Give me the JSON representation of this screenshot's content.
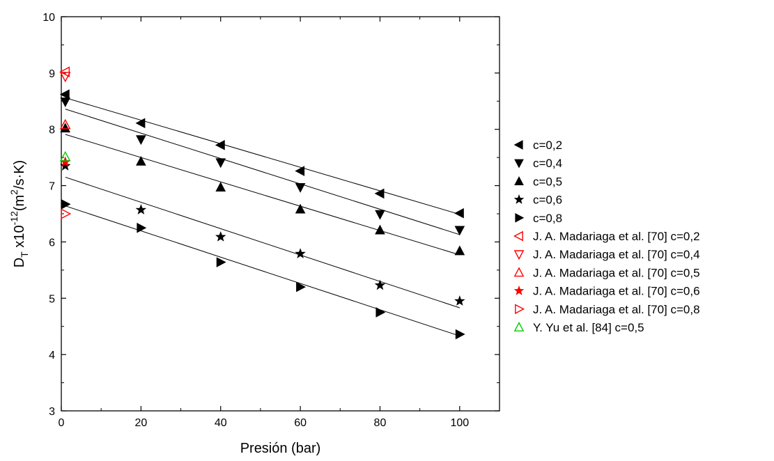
{
  "chart_data": {
    "type": "scatter",
    "xlabel": "Presión (bar)",
    "ylabel": {
      "base": "D",
      "sub": "T",
      "mid": " x10",
      "sup1": "-12",
      "pre": "(m",
      "sup2": "2",
      "post": "/s·K)"
    },
    "xlim": [
      0,
      110
    ],
    "ylim": [
      3,
      10
    ],
    "x_ticks": [
      0,
      20,
      40,
      60,
      80,
      100
    ],
    "y_ticks": [
      3,
      4,
      5,
      6,
      7,
      8,
      9,
      10
    ],
    "grid": false,
    "legend_position": "right",
    "series": [
      {
        "name": "c=0,2",
        "marker": "triangle-left",
        "filled": true,
        "color": "#000000",
        "x": [
          1,
          20,
          40,
          60,
          80,
          100
        ],
        "y": [
          8.62,
          8.11,
          7.72,
          7.26,
          6.86,
          6.51
        ],
        "fit": {
          "x": [
            1,
            100
          ],
          "y": [
            8.56,
            6.49
          ]
        }
      },
      {
        "name": "c=0,4",
        "marker": "triangle-down",
        "filled": true,
        "color": "#000000",
        "x": [
          1,
          20,
          40,
          60,
          80,
          100
        ],
        "y": [
          8.49,
          7.82,
          7.41,
          6.97,
          6.49,
          6.21
        ],
        "fit": {
          "x": [
            1,
            100
          ],
          "y": [
            8.36,
            6.13
          ]
        }
      },
      {
        "name": "c=0,5",
        "marker": "triangle-up",
        "filled": true,
        "color": "#000000",
        "x": [
          1,
          20,
          40,
          60,
          80,
          100
        ],
        "y": [
          8.02,
          7.43,
          6.97,
          6.58,
          6.21,
          5.84
        ],
        "fit": {
          "x": [
            1,
            100
          ],
          "y": [
            7.91,
            5.77
          ]
        }
      },
      {
        "name": "c=0,6",
        "marker": "star",
        "filled": true,
        "color": "#000000",
        "x": [
          1,
          20,
          40,
          60,
          80,
          100
        ],
        "y": [
          7.35,
          6.57,
          6.09,
          5.79,
          5.23,
          4.95
        ],
        "fit": {
          "x": [
            1,
            100
          ],
          "y": [
            7.15,
            4.83
          ]
        }
      },
      {
        "name": "c=0,8",
        "marker": "triangle-right",
        "filled": true,
        "color": "#000000",
        "x": [
          1,
          20,
          40,
          60,
          80,
          100
        ],
        "y": [
          6.67,
          6.25,
          5.64,
          5.2,
          4.75,
          4.36
        ],
        "fit": {
          "x": [
            1,
            100
          ],
          "y": [
            6.64,
            4.33
          ]
        }
      },
      {
        "name": "J. A. Madariaga et al. [70] c=0,2",
        "marker": "triangle-left",
        "filled": false,
        "color": "#ff0000",
        "x": [
          1
        ],
        "y": [
          9.02
        ]
      },
      {
        "name": "J. A. Madariaga et al. [70] c=0,4",
        "marker": "triangle-down",
        "filled": false,
        "color": "#ff0000",
        "x": [
          1
        ],
        "y": [
          8.94
        ]
      },
      {
        "name": "J. A. Madariaga et al. [70] c=0,5",
        "marker": "triangle-up",
        "filled": false,
        "color": "#ff0000",
        "x": [
          1
        ],
        "y": [
          8.08
        ]
      },
      {
        "name": "J. A. Madariaga et al. [70] c=0,6",
        "marker": "star",
        "filled": true,
        "color": "#ff0000",
        "x": [
          1
        ],
        "y": [
          7.42
        ]
      },
      {
        "name": "J. A. Madariaga et al. [70] c=0,8",
        "marker": "triangle-right",
        "filled": false,
        "color": "#ff0000",
        "x": [
          1
        ],
        "y": [
          6.5
        ]
      },
      {
        "name": "Y. Yu et al. [84] c=0,5",
        "marker": "triangle-up",
        "filled": false,
        "color": "#00cc00",
        "x": [
          1
        ],
        "y": [
          7.51
        ]
      }
    ]
  }
}
